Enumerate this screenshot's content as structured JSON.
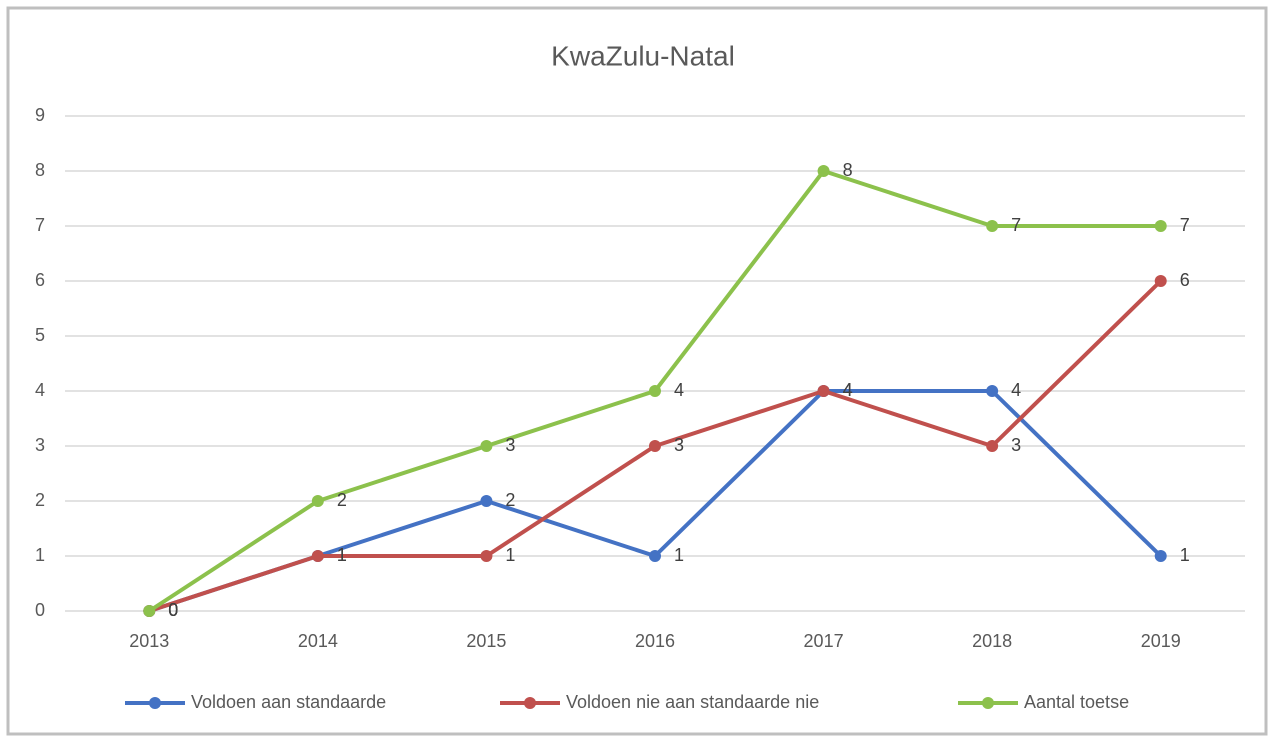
{
  "chart_data": {
    "type": "line",
    "title": "KwaZulu-Natal",
    "categories": [
      "2013",
      "2014",
      "2015",
      "2016",
      "2017",
      "2018",
      "2019"
    ],
    "series": [
      {
        "name": "Voldoen aan standaarde",
        "color": "#4472c4",
        "values": [
          0,
          1,
          2,
          1,
          4,
          4,
          1
        ]
      },
      {
        "name": "Voldoen nie aan standaarde nie",
        "color": "#c0504d",
        "values": [
          0,
          1,
          1,
          3,
          4,
          3,
          6
        ]
      },
      {
        "name": "Aantal toetse",
        "color": "#8cc14c",
        "values": [
          0,
          2,
          3,
          4,
          8,
          7,
          7
        ]
      }
    ],
    "ylim": [
      0,
      9
    ],
    "yticks": [
      0,
      1,
      2,
      3,
      4,
      5,
      6,
      7,
      8,
      9
    ],
    "grid": true,
    "legend": "bottom"
  }
}
